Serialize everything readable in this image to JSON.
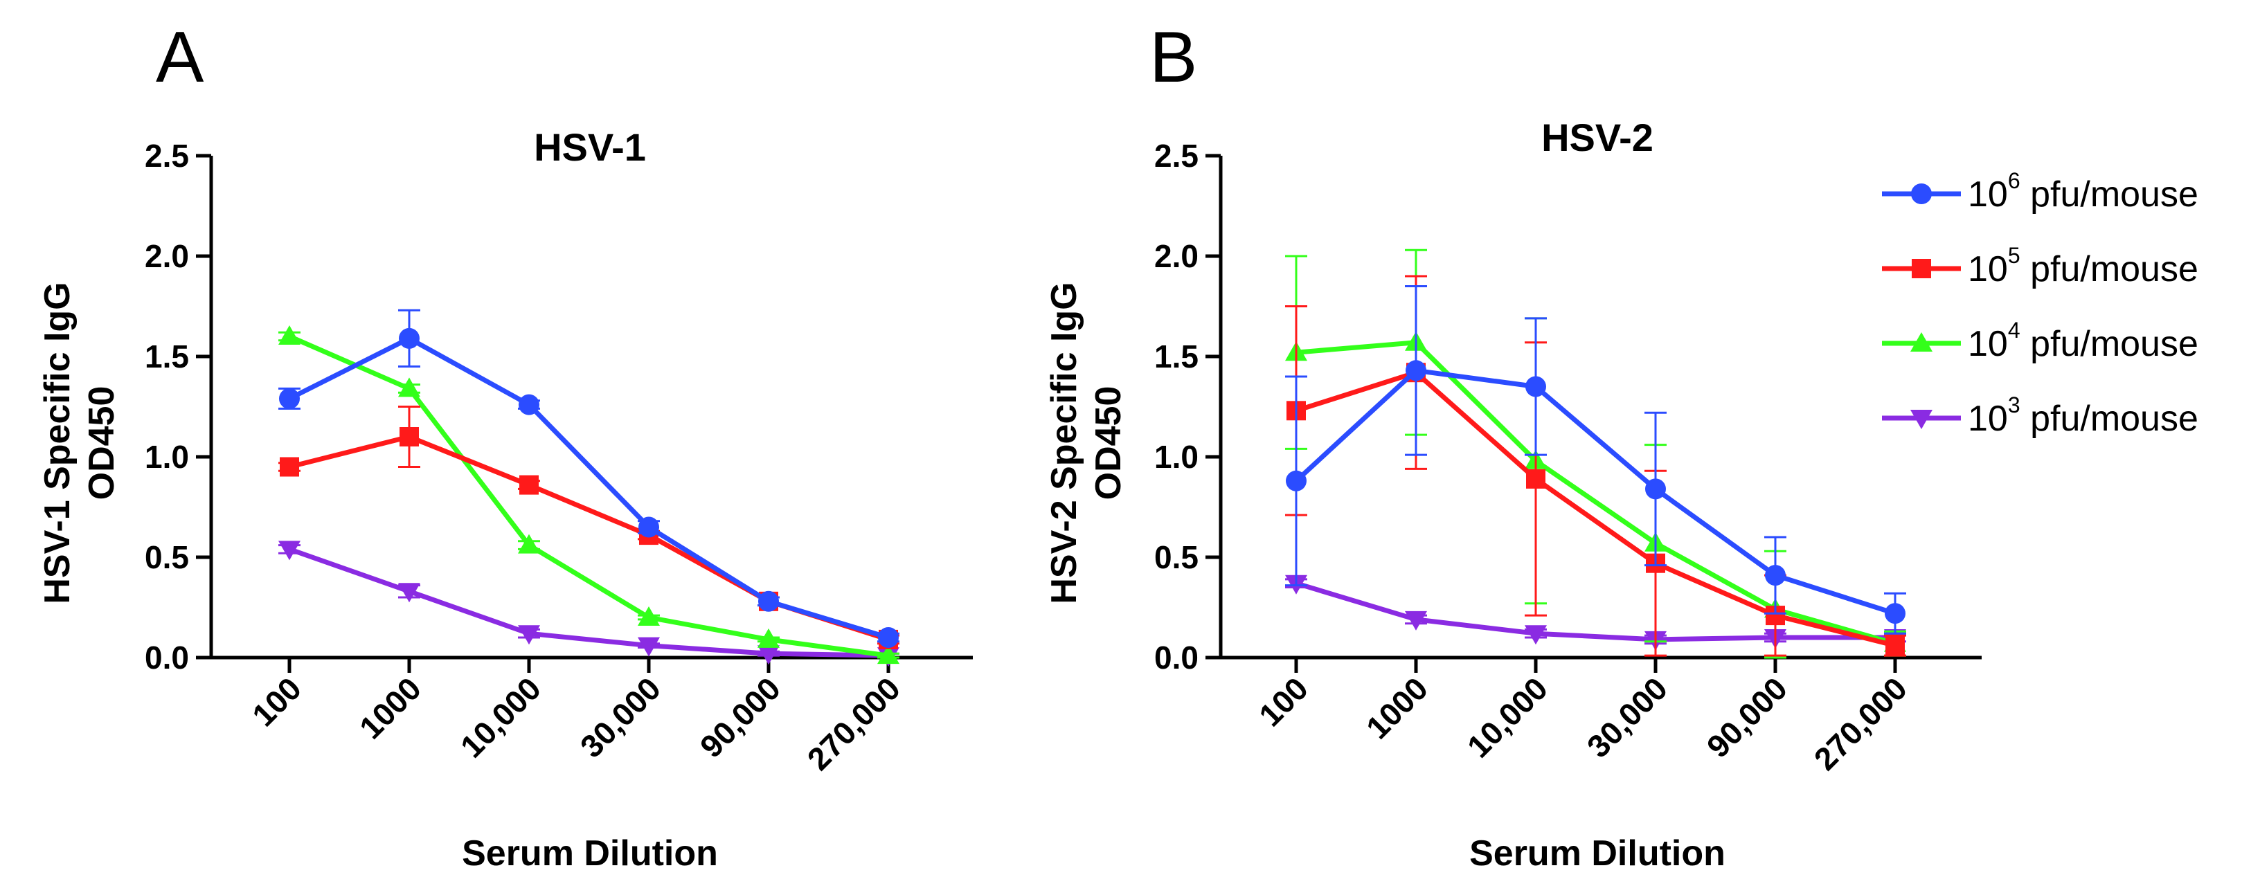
{
  "legend": [
    {
      "base": "10",
      "exp": "6",
      "suffix": " pfu/mouse",
      "color": "#2b4cff",
      "marker": "circle"
    },
    {
      "base": "10",
      "exp": "5",
      "suffix": " pfu/mouse",
      "color": "#ff1a1a",
      "marker": "square"
    },
    {
      "base": "10",
      "exp": "4",
      "suffix": " pfu/mouse",
      "color": "#33ff1a",
      "marker": "triangle-up"
    },
    {
      "base": "10",
      "exp": "3",
      "suffix": " pfu/mouse",
      "color": "#8a2be2",
      "marker": "triangle-down"
    }
  ],
  "chart_data": [
    {
      "panel_label": "A",
      "type": "line",
      "title": "HSV-1",
      "ylabel_line1": "HSV-1 Specific IgG",
      "ylabel_line2": "OD450",
      "xlabel": "Serum Dilution",
      "categories": [
        "100",
        "1000",
        "10,000",
        "30,000",
        "90,000",
        "270,000"
      ],
      "ylim": [
        0,
        2.5
      ],
      "yticks": [
        "0.0",
        "0.5",
        "1.0",
        "1.5",
        "2.0",
        "2.5"
      ],
      "series": [
        {
          "name": "10^6 pfu/mouse",
          "values": [
            1.29,
            1.59,
            1.26,
            0.65,
            0.28,
            0.1
          ],
          "errors": [
            0.05,
            0.14,
            0.02,
            0.03,
            0.02,
            0.02
          ]
        },
        {
          "name": "10^5 pfu/mouse",
          "values": [
            0.95,
            1.1,
            0.86,
            0.61,
            0.28,
            0.09
          ],
          "errors": [
            0.02,
            0.15,
            0.02,
            0.02,
            0.02,
            0.02
          ]
        },
        {
          "name": "10^4 pfu/mouse",
          "values": [
            1.6,
            1.34,
            0.56,
            0.2,
            0.09,
            0.01
          ],
          "errors": [
            0.02,
            0.02,
            0.02,
            0.01,
            0.01,
            0.01
          ]
        },
        {
          "name": "10^3 pfu/mouse",
          "values": [
            0.54,
            0.33,
            0.12,
            0.06,
            0.02,
            0.01
          ],
          "errors": [
            0.02,
            0.03,
            0.02,
            0.01,
            0.01,
            0.01
          ]
        }
      ]
    },
    {
      "panel_label": "B",
      "type": "line",
      "title": "HSV-2",
      "ylabel_line1": "HSV-2 Specific IgG",
      "ylabel_line2": "OD450",
      "xlabel": "Serum Dilution",
      "categories": [
        "100",
        "1000",
        "10,000",
        "30,000",
        "90,000",
        "270,000"
      ],
      "ylim": [
        0,
        2.5
      ],
      "yticks": [
        "0.0",
        "0.5",
        "1.0",
        "1.5",
        "2.0",
        "2.5"
      ],
      "series": [
        {
          "name": "10^6 pfu/mouse",
          "values": [
            0.88,
            1.43,
            1.35,
            0.84,
            0.41,
            0.22
          ],
          "errors": [
            0.52,
            0.42,
            0.34,
            0.38,
            0.19,
            0.1
          ]
        },
        {
          "name": "10^5 pfu/mouse",
          "values": [
            1.23,
            1.42,
            0.89,
            0.47,
            0.21,
            0.06
          ],
          "errors": [
            0.52,
            0.48,
            0.68,
            0.46,
            0.2,
            0.05
          ]
        },
        {
          "name": "10^4 pfu/mouse",
          "values": [
            1.52,
            1.57,
            0.98,
            0.57,
            0.24,
            0.07
          ],
          "errors": [
            0.48,
            0.46,
            0.71,
            0.49,
            0.29,
            0.06
          ]
        },
        {
          "name": "10^3 pfu/mouse",
          "values": [
            0.37,
            0.19,
            0.12,
            0.09,
            0.1,
            0.1
          ],
          "errors": [
            0.02,
            0.02,
            0.02,
            0.02,
            0.02,
            0.02
          ]
        }
      ]
    }
  ]
}
